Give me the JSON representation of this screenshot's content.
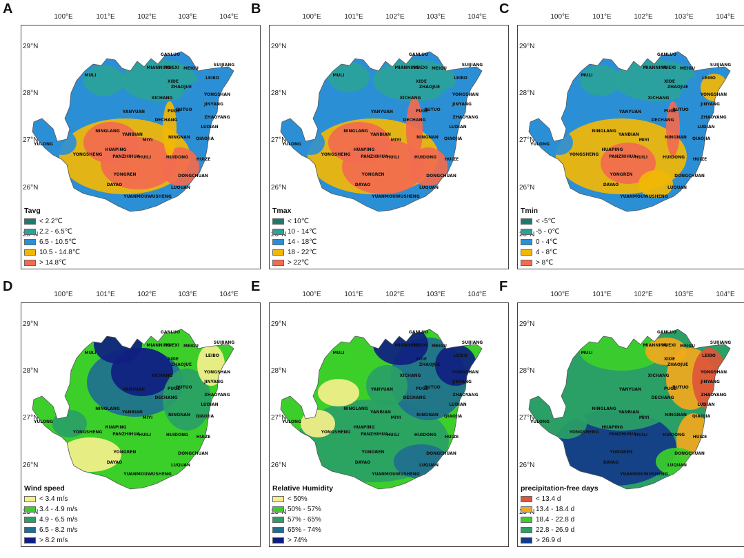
{
  "lon_ticks": [
    "100°E",
    "101°E",
    "102°E",
    "103°E",
    "104°E"
  ],
  "lat_ticks": [
    "29°N",
    "28°N",
    "27°N",
    "26°N",
    "25°N"
  ],
  "places": [
    "GANLUO",
    "YUEXI",
    "MEIGU",
    "MIANNING",
    "LEIBO",
    "SUIJIANG",
    "MULI",
    "XIDE",
    "ZHAOJUE",
    "YONGSHAN",
    "XICHANG",
    "JINYANG",
    "YANYUAN",
    "PUGE",
    "BUTUO",
    "ZHAOYANG",
    "DECHANG",
    "LUDIAN",
    "NINGLANG",
    "YANBIAN",
    "MIYI",
    "NINGNAN",
    "QIAOJIA",
    "YULONG",
    "HUAPING",
    "YONGSHENG",
    "PANZHIHUA",
    "HUILI",
    "HUIDONG",
    "HUIZE",
    "YONGREN",
    "DONGCHUAN",
    "DAYAO",
    "LUQUAN",
    "YUANMOUWUSHENG"
  ],
  "panels": [
    {
      "letter": "A",
      "legend_title": "Tavg",
      "classes": [
        {
          "label": "< 2.2℃",
          "color": "#1a7a6e"
        },
        {
          "label": "2.2 - 6.5℃",
          "color": "#2aa39a"
        },
        {
          "label": "6.5 - 10.5℃",
          "color": "#2b8fd6"
        },
        {
          "label": "10.5 - 14.8℃",
          "color": "#f2b705"
        },
        {
          "label": "> 14.8℃",
          "color": "#f26b4f"
        }
      ]
    },
    {
      "letter": "B",
      "legend_title": "Tmax",
      "classes": [
        {
          "label": "< 10℃",
          "color": "#1a7a6e"
        },
        {
          "label": "10 - 14℃",
          "color": "#2aa39a"
        },
        {
          "label": "14 - 18℃",
          "color": "#2b8fd6"
        },
        {
          "label": "18 - 22℃",
          "color": "#f2b705"
        },
        {
          "label": "> 22℃",
          "color": "#f26b4f"
        }
      ]
    },
    {
      "letter": "C",
      "legend_title": "Tmin",
      "classes": [
        {
          "label": "< -5℃",
          "color": "#1a7a6e"
        },
        {
          "label": "-5 - 0℃",
          "color": "#2aa39a"
        },
        {
          "label": "0 - 4℃",
          "color": "#2b8fd6"
        },
        {
          "label": "4 - 8℃",
          "color": "#f2b705"
        },
        {
          "label": "> 8℃",
          "color": "#f26b4f"
        }
      ]
    },
    {
      "letter": "D",
      "legend_title": "Wind speed",
      "classes": [
        {
          "label": "< 3.4 m/s",
          "color": "#f5f08a"
        },
        {
          "label": "3.4 - 4.9 m/s",
          "color": "#3ccf2a"
        },
        {
          "label": "4.9 - 6.5 m/s",
          "color": "#2a9f66"
        },
        {
          "label": "6.5 - 8.2 m/s",
          "color": "#1f6f8f"
        },
        {
          "label": "> 8.2 m/s",
          "color": "#0f1f80"
        }
      ]
    },
    {
      "letter": "E",
      "legend_title": "Relative Humidity",
      "classes": [
        {
          "label": "< 50%",
          "color": "#f5f08a"
        },
        {
          "label": "50% - 57%",
          "color": "#3ccf2a"
        },
        {
          "label": "57% - 65%",
          "color": "#2a9f66"
        },
        {
          "label": "65% - 74%",
          "color": "#1f6f8f"
        },
        {
          "label": "> 74%",
          "color": "#0f1f80"
        }
      ]
    },
    {
      "letter": "F",
      "legend_title": "precipitation-free days",
      "classes": [
        {
          "label": "< 13.4 d",
          "color": "#e0553a"
        },
        {
          "label": "13.4 - 18.4 d",
          "color": "#f2a81d"
        },
        {
          "label": "18.4 - 22.8 d",
          "color": "#3ccf2a"
        },
        {
          "label": "22.8 - 26.9 d",
          "color": "#2a9f66"
        },
        {
          "label": "> 26.9 d",
          "color": "#143a8a"
        }
      ]
    }
  ]
}
